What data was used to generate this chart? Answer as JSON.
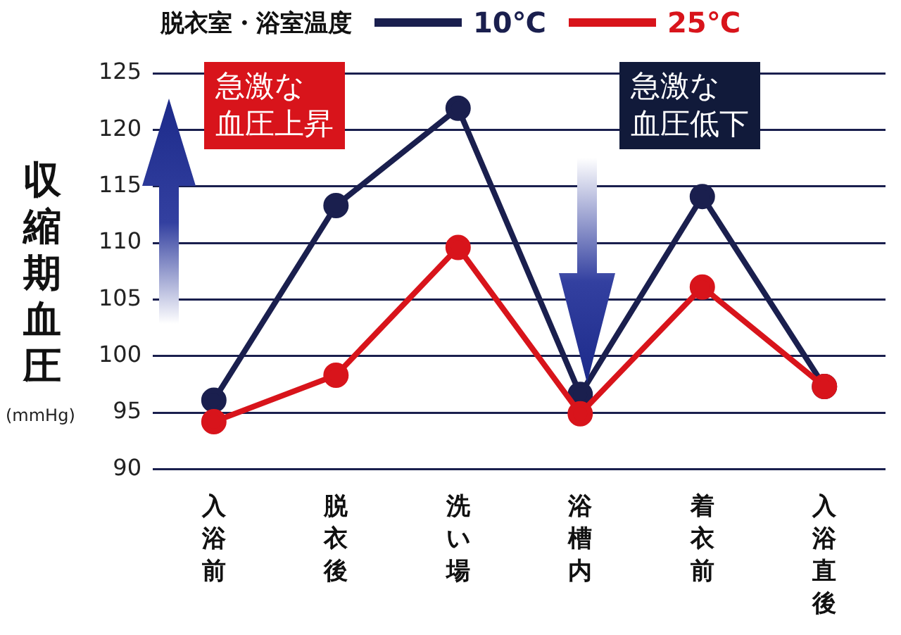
{
  "chart_data": {
    "type": "line",
    "categories": [
      "入浴前",
      "脱衣後",
      "洗い場",
      "浴槽内",
      "着衣前",
      "入浴直後"
    ],
    "ylabel": "収縮期血圧(mmHg)",
    "legend_title": "脱衣室・浴室温度",
    "series": [
      {
        "name": "10℃",
        "color": "#1a1f4e",
        "values": [
          96.1,
          113.3,
          121.9,
          96.6,
          114.1,
          97.3
        ]
      },
      {
        "name": "25℃",
        "color": "#d8141b",
        "values": [
          94.2,
          98.3,
          109.6,
          94.9,
          106.1,
          97.3
        ]
      }
    ],
    "ylim": [
      90,
      125
    ],
    "yticks": [
      90,
      95,
      100,
      105,
      110,
      115,
      120,
      125
    ],
    "grid": "y",
    "legend": "top",
    "marker": "circle",
    "line_style": "solid",
    "annotations": [
      "急激な血圧上昇",
      "急激な血圧低下"
    ]
  }
}
